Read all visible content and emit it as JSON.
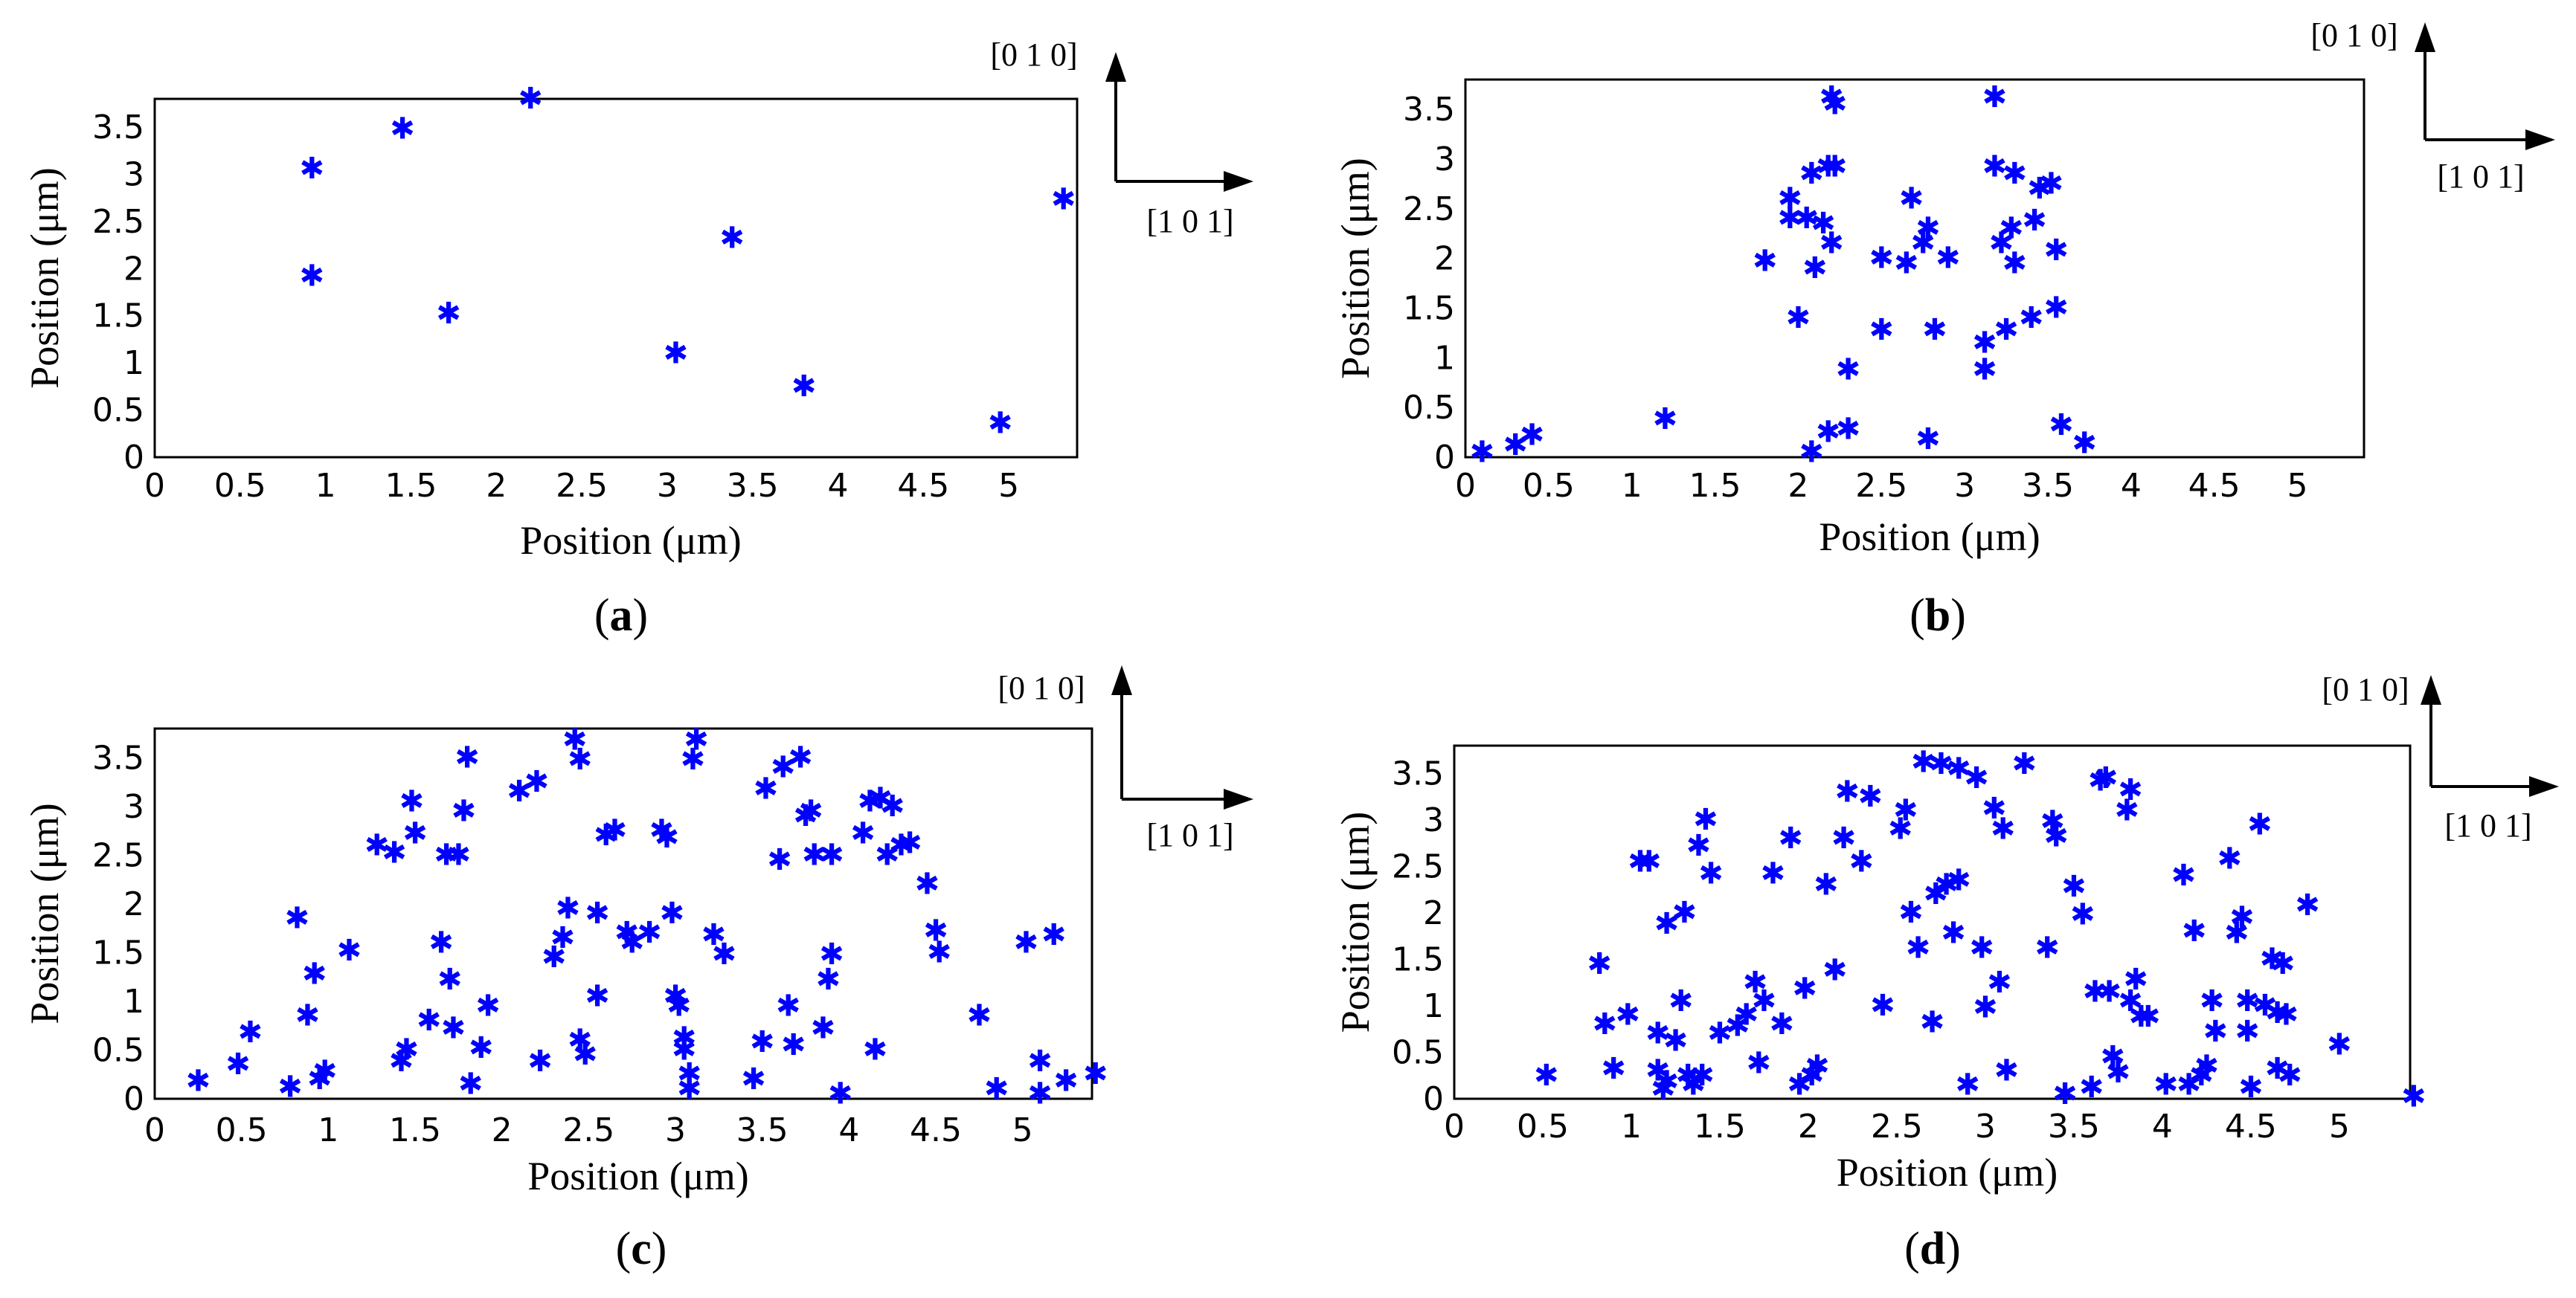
{
  "marker_color": "#0000ff",
  "axis_color": "#000000",
  "marker_symbol": "✱",
  "direction_labels": {
    "up": "[0 1 0]",
    "right": "[1 0 1]"
  },
  "chart_data": [
    {
      "id": "a",
      "type": "scatter",
      "caption": "(a)",
      "xlabel": "Position (μm)",
      "ylabel": "Position (μm)",
      "xlim": [
        0,
        5.4
      ],
      "ylim": [
        0,
        3.8
      ],
      "xticks": [
        "0",
        "0.5",
        "1",
        "1.5",
        "2",
        "2.5",
        "3",
        "3.5",
        "4",
        "4.5",
        "5"
      ],
      "yticks": [
        "0",
        "0.5",
        "1",
        "1.5",
        "2",
        "2.5",
        "3",
        "3.5"
      ],
      "points": [
        [
          0.92,
          3.06
        ],
        [
          0.92,
          1.92
        ],
        [
          1.45,
          3.48
        ],
        [
          1.72,
          1.52
        ],
        [
          2.2,
          3.8
        ],
        [
          3.05,
          1.1
        ],
        [
          3.38,
          2.32
        ],
        [
          3.8,
          0.75
        ],
        [
          4.95,
          0.36
        ],
        [
          5.32,
          2.73
        ]
      ]
    },
    {
      "id": "b",
      "type": "scatter",
      "caption": "(b)",
      "xlabel": "Position (μm)",
      "ylabel": "Position (μm)",
      "xlim": [
        0,
        5.4
      ],
      "ylim": [
        0,
        3.8
      ],
      "xticks": [
        "0",
        "0.5",
        "1",
        "1.5",
        "2",
        "2.5",
        "3",
        "3.5",
        "4",
        "4.5",
        "5"
      ],
      "yticks": [
        "0",
        "0.5",
        "1",
        "1.5",
        "2",
        "2.5",
        "3",
        "3.5"
      ],
      "points": [
        [
          0.1,
          0.05
        ],
        [
          0.3,
          0.12
        ],
        [
          0.4,
          0.22
        ],
        [
          1.2,
          0.38
        ],
        [
          2.2,
          3.62
        ],
        [
          2.22,
          3.55
        ],
        [
          3.18,
          3.62
        ],
        [
          2.08,
          2.85
        ],
        [
          2.18,
          2.92
        ],
        [
          2.22,
          2.92
        ],
        [
          3.18,
          2.92
        ],
        [
          3.3,
          2.85
        ],
        [
          1.95,
          2.6
        ],
        [
          2.05,
          2.4
        ],
        [
          2.15,
          2.35
        ],
        [
          1.95,
          2.4
        ],
        [
          2.68,
          2.6
        ],
        [
          2.78,
          2.3
        ],
        [
          3.45,
          2.7
        ],
        [
          3.52,
          2.75
        ],
        [
          3.42,
          2.38
        ],
        [
          3.28,
          2.3
        ],
        [
          2.2,
          2.15
        ],
        [
          2.1,
          1.9
        ],
        [
          1.8,
          1.97
        ],
        [
          2.5,
          2.0
        ],
        [
          2.65,
          1.95
        ],
        [
          2.75,
          2.15
        ],
        [
          2.9,
          2.0
        ],
        [
          3.22,
          2.15
        ],
        [
          3.3,
          1.95
        ],
        [
          3.55,
          2.08
        ],
        [
          2.0,
          1.4
        ],
        [
          2.5,
          1.28
        ],
        [
          2.82,
          1.28
        ],
        [
          3.12,
          1.15
        ],
        [
          3.25,
          1.28
        ],
        [
          3.4,
          1.4
        ],
        [
          3.55,
          1.5
        ],
        [
          2.3,
          0.88
        ],
        [
          3.12,
          0.88
        ],
        [
          2.08,
          0.05
        ],
        [
          2.18,
          0.25
        ],
        [
          2.3,
          0.28
        ],
        [
          2.78,
          0.18
        ],
        [
          3.58,
          0.32
        ],
        [
          3.72,
          0.14
        ]
      ]
    },
    {
      "id": "c",
      "type": "scatter",
      "caption": "(c)",
      "xlabel": "Position (μm)",
      "ylabel": "Position (μm)",
      "xlim": [
        0,
        5.4
      ],
      "ylim": [
        0,
        3.8
      ],
      "xticks": [
        "0",
        "0.5",
        "1",
        "1.5",
        "2",
        "2.5",
        "3",
        "3.5",
        "4",
        "4.5",
        "5"
      ],
      "yticks": [
        "0",
        "0.5",
        "1",
        "1.5",
        "2",
        "2.5",
        "3",
        "3.5"
      ],
      "points": [
        [
          0.25,
          0.18
        ],
        [
          0.48,
          0.35
        ],
        [
          0.55,
          0.68
        ],
        [
          0.78,
          0.12
        ],
        [
          0.82,
          1.85
        ],
        [
          0.88,
          0.85
        ],
        [
          0.92,
          1.28
        ],
        [
          0.95,
          0.2
        ],
        [
          0.98,
          0.28
        ],
        [
          1.12,
          1.52
        ],
        [
          1.28,
          2.6
        ],
        [
          1.38,
          2.52
        ],
        [
          1.42,
          0.38
        ],
        [
          1.45,
          0.5
        ],
        [
          1.48,
          3.05
        ],
        [
          1.5,
          2.72
        ],
        [
          1.58,
          0.8
        ],
        [
          1.65,
          1.6
        ],
        [
          1.68,
          2.5
        ],
        [
          1.7,
          1.22
        ],
        [
          1.72,
          0.72
        ],
        [
          1.75,
          2.5
        ],
        [
          1.78,
          2.95
        ],
        [
          1.8,
          3.5
        ],
        [
          1.82,
          0.15
        ],
        [
          1.88,
          0.52
        ],
        [
          1.92,
          0.95
        ],
        [
          2.1,
          3.15
        ],
        [
          2.2,
          3.25
        ],
        [
          2.22,
          0.38
        ],
        [
          2.3,
          1.45
        ],
        [
          2.35,
          1.65
        ],
        [
          2.38,
          1.95
        ],
        [
          2.42,
          3.68
        ],
        [
          2.45,
          3.48
        ],
        [
          2.45,
          0.6
        ],
        [
          2.48,
          0.45
        ],
        [
          2.55,
          1.05
        ],
        [
          2.55,
          1.9
        ],
        [
          2.6,
          2.7
        ],
        [
          2.65,
          2.75
        ],
        [
          2.72,
          1.7
        ],
        [
          2.75,
          1.6
        ],
        [
          2.85,
          1.7
        ],
        [
          2.92,
          2.75
        ],
        [
          2.95,
          2.68
        ],
        [
          2.98,
          1.9
        ],
        [
          3.0,
          1.05
        ],
        [
          3.02,
          0.95
        ],
        [
          3.05,
          0.5
        ],
        [
          3.05,
          0.62
        ],
        [
          3.08,
          0.25
        ],
        [
          3.1,
          3.48
        ],
        [
          3.12,
          3.68
        ],
        [
          3.08,
          0.1
        ],
        [
          3.22,
          1.68
        ],
        [
          3.28,
          1.48
        ],
        [
          3.45,
          0.2
        ],
        [
          3.5,
          0.58
        ],
        [
          3.52,
          3.18
        ],
        [
          3.6,
          2.45
        ],
        [
          3.62,
          3.4
        ],
        [
          3.65,
          0.95
        ],
        [
          3.68,
          0.55
        ],
        [
          3.72,
          3.5
        ],
        [
          3.75,
          2.9
        ],
        [
          3.78,
          2.95
        ],
        [
          3.8,
          2.5
        ],
        [
          3.85,
          0.72
        ],
        [
          3.88,
          1.22
        ],
        [
          3.9,
          1.48
        ],
        [
          3.9,
          2.5
        ],
        [
          3.95,
          0.05
        ],
        [
          4.08,
          2.72
        ],
        [
          4.12,
          3.05
        ],
        [
          4.15,
          0.5
        ],
        [
          4.18,
          3.08
        ],
        [
          4.22,
          2.5
        ],
        [
          4.25,
          3.0
        ],
        [
          4.3,
          2.6
        ],
        [
          4.35,
          2.62
        ],
        [
          4.45,
          2.2
        ],
        [
          4.5,
          1.72
        ],
        [
          4.52,
          1.5
        ],
        [
          4.75,
          0.85
        ],
        [
          4.85,
          0.1
        ],
        [
          5.02,
          1.6
        ],
        [
          5.1,
          0.38
        ],
        [
          5.18,
          1.68
        ],
        [
          5.1,
          0.05
        ],
        [
          5.25,
          0.18
        ],
        [
          5.42,
          0.25
        ]
      ]
    },
    {
      "id": "d",
      "type": "scatter",
      "caption": "(d)",
      "xlabel": "Position (μm)",
      "ylabel": "Position (μm)",
      "xlim": [
        0,
        5.4
      ],
      "ylim": [
        0,
        3.8
      ],
      "xticks": [
        "0",
        "0.5",
        "1",
        "1.5",
        "2",
        "2.5",
        "3",
        "3.5",
        "4",
        "4.5",
        "5"
      ],
      "yticks": [
        "0",
        "0.5",
        "1",
        "1.5",
        "2",
        "2.5",
        "3",
        "3.5"
      ],
      "points": [
        [
          0.52,
          0.25
        ],
        [
          0.82,
          1.45
        ],
        [
          0.85,
          0.8
        ],
        [
          0.9,
          0.32
        ],
        [
          0.98,
          0.9
        ],
        [
          1.05,
          2.55
        ],
        [
          1.1,
          2.55
        ],
        [
          1.15,
          0.7
        ],
        [
          1.15,
          0.3
        ],
        [
          1.18,
          0.1
        ],
        [
          1.2,
          1.88
        ],
        [
          1.2,
          0.18
        ],
        [
          1.25,
          0.62
        ],
        [
          1.28,
          1.05
        ],
        [
          1.3,
          2.0
        ],
        [
          1.32,
          0.25
        ],
        [
          1.35,
          0.15
        ],
        [
          1.38,
          2.72
        ],
        [
          1.4,
          0.25
        ],
        [
          1.42,
          3.0
        ],
        [
          1.45,
          2.42
        ],
        [
          1.5,
          0.7
        ],
        [
          1.6,
          0.78
        ],
        [
          1.65,
          0.9
        ],
        [
          1.7,
          1.25
        ],
        [
          1.72,
          0.38
        ],
        [
          1.75,
          1.05
        ],
        [
          1.8,
          2.42
        ],
        [
          1.85,
          0.8
        ],
        [
          1.9,
          2.8
        ],
        [
          1.95,
          0.15
        ],
        [
          1.98,
          1.18
        ],
        [
          2.02,
          0.25
        ],
        [
          2.05,
          0.35
        ],
        [
          2.1,
          2.3
        ],
        [
          2.15,
          1.38
        ],
        [
          2.2,
          2.8
        ],
        [
          2.22,
          3.3
        ],
        [
          2.3,
          2.55
        ],
        [
          2.35,
          3.25
        ],
        [
          2.42,
          1.0
        ],
        [
          2.52,
          2.9
        ],
        [
          2.55,
          3.1
        ],
        [
          2.58,
          2.0
        ],
        [
          2.62,
          1.62
        ],
        [
          2.65,
          3.62
        ],
        [
          2.7,
          0.82
        ],
        [
          2.72,
          2.2
        ],
        [
          2.75,
          3.6
        ],
        [
          2.78,
          2.3
        ],
        [
          2.82,
          1.78
        ],
        [
          2.85,
          3.55
        ],
        [
          2.85,
          2.35
        ],
        [
          2.9,
          0.15
        ],
        [
          2.95,
          3.45
        ],
        [
          2.98,
          1.62
        ],
        [
          3.0,
          0.98
        ],
        [
          3.05,
          3.12
        ],
        [
          3.08,
          1.25
        ],
        [
          3.1,
          2.9
        ],
        [
          3.12,
          0.3
        ],
        [
          3.22,
          3.6
        ],
        [
          3.35,
          1.62
        ],
        [
          3.38,
          2.98
        ],
        [
          3.4,
          2.82
        ],
        [
          3.45,
          0.05
        ],
        [
          3.5,
          2.28
        ],
        [
          3.55,
          1.98
        ],
        [
          3.6,
          0.12
        ],
        [
          3.62,
          1.15
        ],
        [
          3.65,
          3.42
        ],
        [
          3.68,
          3.45
        ],
        [
          3.7,
          1.15
        ],
        [
          3.72,
          0.45
        ],
        [
          3.75,
          0.28
        ],
        [
          3.8,
          3.1
        ],
        [
          3.82,
          3.32
        ],
        [
          3.82,
          1.05
        ],
        [
          3.85,
          1.28
        ],
        [
          3.88,
          0.88
        ],
        [
          3.92,
          0.88
        ],
        [
          4.02,
          0.15
        ],
        [
          4.12,
          2.4
        ],
        [
          4.15,
          0.15
        ],
        [
          4.18,
          1.8
        ],
        [
          4.22,
          0.25
        ],
        [
          4.25,
          0.35
        ],
        [
          4.28,
          1.05
        ],
        [
          4.3,
          0.72
        ],
        [
          4.38,
          2.58
        ],
        [
          4.42,
          1.78
        ],
        [
          4.45,
          1.95
        ],
        [
          4.48,
          1.05
        ],
        [
          4.48,
          0.72
        ],
        [
          4.5,
          0.12
        ],
        [
          4.55,
          2.95
        ],
        [
          4.58,
          1.0
        ],
        [
          4.62,
          1.5
        ],
        [
          4.65,
          0.92
        ],
        [
          4.65,
          0.32
        ],
        [
          4.68,
          1.45
        ],
        [
          4.7,
          0.9
        ],
        [
          4.72,
          0.25
        ],
        [
          4.82,
          2.08
        ],
        [
          5.0,
          0.58
        ],
        [
          5.42,
          0.02
        ]
      ]
    }
  ]
}
